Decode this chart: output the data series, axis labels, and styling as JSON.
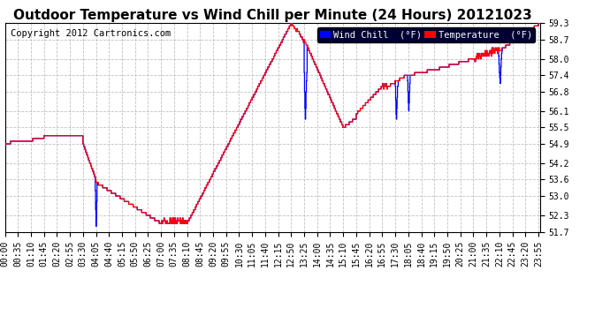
{
  "title": "Outdoor Temperature vs Wind Chill per Minute (24 Hours) 20121023",
  "copyright": "Copyright 2012 Cartronics.com",
  "ylim": [
    51.7,
    59.3
  ],
  "yticks": [
    51.7,
    52.3,
    53.0,
    53.6,
    54.2,
    54.9,
    55.5,
    56.1,
    56.8,
    57.4,
    58.0,
    58.7,
    59.3
  ],
  "total_minutes": 1440,
  "background_color": "#ffffff",
  "grid_color": "#bbbbbb",
  "temp_color": "#ff0000",
  "wind_color": "#0000ff",
  "legend_wind_bg": "#0000ff",
  "legend_temp_bg": "#ff0000",
  "xtick_interval": 35,
  "title_fontsize": 11,
  "copyright_fontsize": 7.5,
  "tick_fontsize": 7,
  "legend_fontsize": 7.5
}
